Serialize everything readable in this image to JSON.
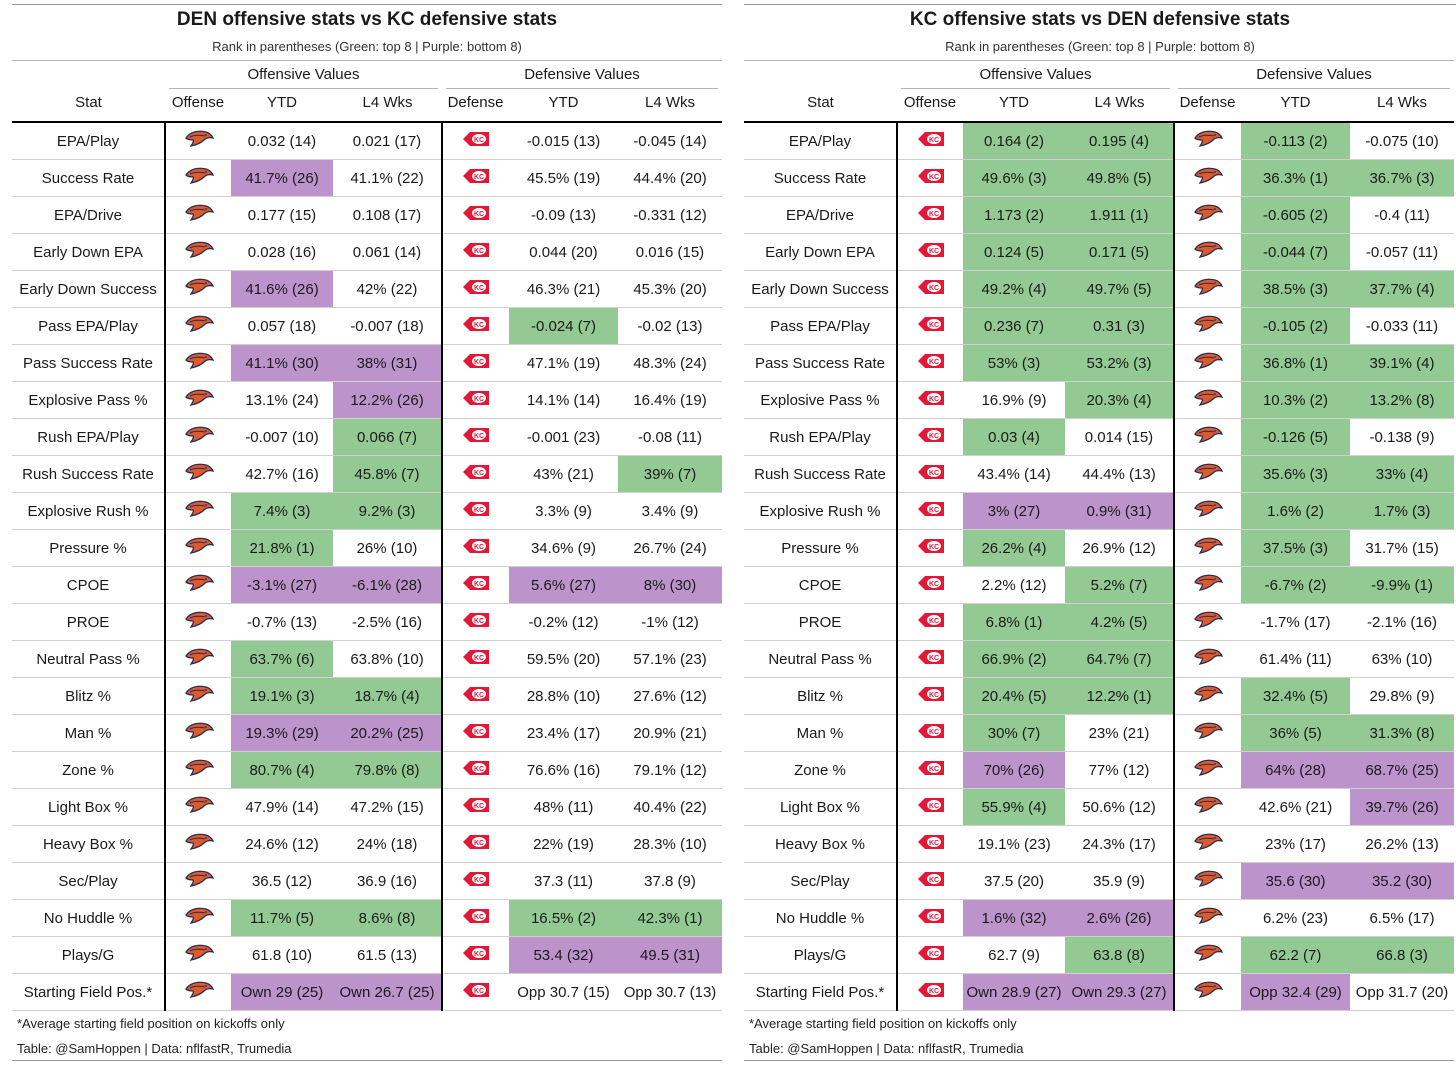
{
  "panels": [
    {
      "title": "DEN offensive stats vs KC defensive stats",
      "subtitle": "Rank in parentheses (Green: top 8 | Purple: bottom 8)",
      "group_headers": [
        "Offensive Values",
        "Defensive Values"
      ],
      "column_headers": [
        "Stat",
        "Offense",
        "YTD",
        "L4 Wks",
        "Defense",
        "YTD",
        "L4 Wks"
      ],
      "offense_logo": "broncos-logo",
      "defense_logo": "chiefs-logo",
      "rows": [
        {
          "stat": "EPA/Play",
          "off_ytd": "0.032 (14)",
          "off_l4": "0.021 (17)",
          "def_ytd": "-0.015 (13)",
          "def_l4": "-0.045 (14)",
          "h": [
            "",
            "",
            "",
            ""
          ]
        },
        {
          "stat": "Success Rate",
          "off_ytd": "41.7% (26)",
          "off_l4": "41.1% (22)",
          "def_ytd": "45.5% (19)",
          "def_l4": "44.4% (20)",
          "h": [
            "p",
            "",
            "",
            ""
          ]
        },
        {
          "stat": "EPA/Drive",
          "off_ytd": "0.177 (15)",
          "off_l4": "0.108 (17)",
          "def_ytd": "-0.09 (13)",
          "def_l4": "-0.331 (12)",
          "h": [
            "",
            "",
            "",
            ""
          ]
        },
        {
          "stat": "Early Down EPA",
          "off_ytd": "0.028 (16)",
          "off_l4": "0.061 (14)",
          "def_ytd": "0.044 (20)",
          "def_l4": "0.016 (15)",
          "h": [
            "",
            "",
            "",
            ""
          ]
        },
        {
          "stat": "Early Down Success",
          "off_ytd": "41.6% (26)",
          "off_l4": "42% (22)",
          "def_ytd": "46.3% (21)",
          "def_l4": "45.3% (20)",
          "h": [
            "p",
            "",
            "",
            ""
          ]
        },
        {
          "stat": "Pass EPA/Play",
          "off_ytd": "0.057 (18)",
          "off_l4": "-0.007 (18)",
          "def_ytd": "-0.024 (7)",
          "def_l4": "-0.02 (13)",
          "h": [
            "",
            "",
            "g",
            ""
          ]
        },
        {
          "stat": "Pass Success Rate",
          "off_ytd": "41.1% (30)",
          "off_l4": "38% (31)",
          "def_ytd": "47.1% (19)",
          "def_l4": "48.3% (24)",
          "h": [
            "p",
            "p",
            "",
            ""
          ]
        },
        {
          "stat": "Explosive Pass %",
          "off_ytd": "13.1% (24)",
          "off_l4": "12.2% (26)",
          "def_ytd": "14.1% (14)",
          "def_l4": "16.4% (19)",
          "h": [
            "",
            "p",
            "",
            ""
          ]
        },
        {
          "stat": "Rush EPA/Play",
          "off_ytd": "-0.007 (10)",
          "off_l4": "0.066 (7)",
          "def_ytd": "-0.001 (23)",
          "def_l4": "-0.08 (11)",
          "h": [
            "",
            "g",
            "",
            ""
          ]
        },
        {
          "stat": "Rush Success Rate",
          "off_ytd": "42.7% (16)",
          "off_l4": "45.8% (7)",
          "def_ytd": "43% (21)",
          "def_l4": "39% (7)",
          "h": [
            "",
            "g",
            "",
            "g"
          ]
        },
        {
          "stat": "Explosive Rush %",
          "off_ytd": "7.4% (3)",
          "off_l4": "9.2% (3)",
          "def_ytd": "3.3% (9)",
          "def_l4": "3.4% (9)",
          "h": [
            "g",
            "g",
            "",
            ""
          ]
        },
        {
          "stat": "Pressure %",
          "off_ytd": "21.8% (1)",
          "off_l4": "26% (10)",
          "def_ytd": "34.6% (9)",
          "def_l4": "26.7% (24)",
          "h": [
            "g",
            "",
            "",
            ""
          ]
        },
        {
          "stat": "CPOE",
          "off_ytd": "-3.1% (27)",
          "off_l4": "-6.1% (28)",
          "def_ytd": "5.6% (27)",
          "def_l4": "8% (30)",
          "h": [
            "p",
            "p",
            "p",
            "p"
          ]
        },
        {
          "stat": "PROE",
          "off_ytd": "-0.7% (13)",
          "off_l4": "-2.5% (16)",
          "def_ytd": "-0.2% (12)",
          "def_l4": "-1% (12)",
          "h": [
            "",
            "",
            "",
            ""
          ]
        },
        {
          "stat": "Neutral Pass %",
          "off_ytd": "63.7% (6)",
          "off_l4": "63.8% (10)",
          "def_ytd": "59.5% (20)",
          "def_l4": "57.1% (23)",
          "h": [
            "g",
            "",
            "",
            ""
          ]
        },
        {
          "stat": "Blitz %",
          "off_ytd": "19.1% (3)",
          "off_l4": "18.7% (4)",
          "def_ytd": "28.8% (10)",
          "def_l4": "27.6% (12)",
          "h": [
            "g",
            "g",
            "",
            ""
          ]
        },
        {
          "stat": "Man %",
          "off_ytd": "19.3% (29)",
          "off_l4": "20.2% (25)",
          "def_ytd": "23.4% (17)",
          "def_l4": "20.9% (21)",
          "h": [
            "p",
            "p",
            "",
            ""
          ]
        },
        {
          "stat": "Zone %",
          "off_ytd": "80.7% (4)",
          "off_l4": "79.8% (8)",
          "def_ytd": "76.6% (16)",
          "def_l4": "79.1% (12)",
          "h": [
            "g",
            "g",
            "",
            ""
          ]
        },
        {
          "stat": "Light Box %",
          "off_ytd": "47.9% (14)",
          "off_l4": "47.2% (15)",
          "def_ytd": "48% (11)",
          "def_l4": "40.4% (22)",
          "h": [
            "",
            "",
            "",
            ""
          ]
        },
        {
          "stat": "Heavy Box %",
          "off_ytd": "24.6% (12)",
          "off_l4": "24% (18)",
          "def_ytd": "22% (19)",
          "def_l4": "28.3% (10)",
          "h": [
            "",
            "",
            "",
            ""
          ]
        },
        {
          "stat": "Sec/Play",
          "off_ytd": "36.5 (12)",
          "off_l4": "36.9 (16)",
          "def_ytd": "37.3 (11)",
          "def_l4": "37.8 (9)",
          "h": [
            "",
            "",
            "",
            ""
          ]
        },
        {
          "stat": "No Huddle %",
          "off_ytd": "11.7% (5)",
          "off_l4": "8.6% (8)",
          "def_ytd": "16.5% (2)",
          "def_l4": "42.3% (1)",
          "h": [
            "g",
            "g",
            "g",
            "g"
          ]
        },
        {
          "stat": "Plays/G",
          "off_ytd": "61.8 (10)",
          "off_l4": "61.5 (13)",
          "def_ytd": "53.4 (32)",
          "def_l4": "49.5 (31)",
          "h": [
            "",
            "",
            "p",
            "p"
          ]
        },
        {
          "stat": "Starting Field Pos.*",
          "off_ytd": "Own 29 (25)",
          "off_l4": "Own 26.7 (25)",
          "def_ytd": "Opp 30.7 (15)",
          "def_l4": "Opp 30.7 (13)",
          "h": [
            "p",
            "p",
            "",
            ""
          ]
        }
      ],
      "footnote": "*Average starting field position on kickoffs only",
      "credit": "Table: @SamHoppen | Data: nflfastR, Trumedia"
    },
    {
      "title": "KC offensive stats vs DEN defensive stats",
      "subtitle": "Rank in parentheses (Green: top 8 | Purple: bottom 8)",
      "group_headers": [
        "Offensive Values",
        "Defensive Values"
      ],
      "column_headers": [
        "Stat",
        "Offense",
        "YTD",
        "L4 Wks",
        "Defense",
        "YTD",
        "L4 Wks"
      ],
      "offense_logo": "chiefs-logo",
      "defense_logo": "broncos-logo",
      "rows": [
        {
          "stat": "EPA/Play",
          "off_ytd": "0.164 (2)",
          "off_l4": "0.195 (4)",
          "def_ytd": "-0.113 (2)",
          "def_l4": "-0.075 (10)",
          "h": [
            "g",
            "g",
            "g",
            ""
          ]
        },
        {
          "stat": "Success Rate",
          "off_ytd": "49.6% (3)",
          "off_l4": "49.8% (5)",
          "def_ytd": "36.3% (1)",
          "def_l4": "36.7% (3)",
          "h": [
            "g",
            "g",
            "g",
            "g"
          ]
        },
        {
          "stat": "EPA/Drive",
          "off_ytd": "1.173 (2)",
          "off_l4": "1.911 (1)",
          "def_ytd": "-0.605 (2)",
          "def_l4": "-0.4 (11)",
          "h": [
            "g",
            "g",
            "g",
            ""
          ]
        },
        {
          "stat": "Early Down EPA",
          "off_ytd": "0.124 (5)",
          "off_l4": "0.171 (5)",
          "def_ytd": "-0.044 (7)",
          "def_l4": "-0.057 (11)",
          "h": [
            "g",
            "g",
            "g",
            ""
          ]
        },
        {
          "stat": "Early Down Success",
          "off_ytd": "49.2% (4)",
          "off_l4": "49.7% (5)",
          "def_ytd": "38.5% (3)",
          "def_l4": "37.7% (4)",
          "h": [
            "g",
            "g",
            "g",
            "g"
          ]
        },
        {
          "stat": "Pass EPA/Play",
          "off_ytd": "0.236 (7)",
          "off_l4": "0.31 (3)",
          "def_ytd": "-0.105 (2)",
          "def_l4": "-0.033 (11)",
          "h": [
            "g",
            "g",
            "g",
            ""
          ]
        },
        {
          "stat": "Pass Success Rate",
          "off_ytd": "53% (3)",
          "off_l4": "53.2% (3)",
          "def_ytd": "36.8% (1)",
          "def_l4": "39.1% (4)",
          "h": [
            "g",
            "g",
            "g",
            "g"
          ]
        },
        {
          "stat": "Explosive Pass %",
          "off_ytd": "16.9% (9)",
          "off_l4": "20.3% (4)",
          "def_ytd": "10.3% (2)",
          "def_l4": "13.2% (8)",
          "h": [
            "",
            "g",
            "g",
            "g"
          ]
        },
        {
          "stat": "Rush EPA/Play",
          "off_ytd": "0.03 (4)",
          "off_l4": "0.014 (15)",
          "def_ytd": "-0.126 (5)",
          "def_l4": "-0.138 (9)",
          "h": [
            "g",
            "",
            "g",
            ""
          ]
        },
        {
          "stat": "Rush Success Rate",
          "off_ytd": "43.4% (14)",
          "off_l4": "44.4% (13)",
          "def_ytd": "35.6% (3)",
          "def_l4": "33% (4)",
          "h": [
            "",
            "",
            "g",
            "g"
          ]
        },
        {
          "stat": "Explosive Rush %",
          "off_ytd": "3% (27)",
          "off_l4": "0.9% (31)",
          "def_ytd": "1.6% (2)",
          "def_l4": "1.7% (3)",
          "h": [
            "p",
            "p",
            "g",
            "g"
          ]
        },
        {
          "stat": "Pressure %",
          "off_ytd": "26.2% (4)",
          "off_l4": "26.9% (12)",
          "def_ytd": "37.5% (3)",
          "def_l4": "31.7% (15)",
          "h": [
            "g",
            "",
            "g",
            ""
          ]
        },
        {
          "stat": "CPOE",
          "off_ytd": "2.2% (12)",
          "off_l4": "5.2% (7)",
          "def_ytd": "-6.7% (2)",
          "def_l4": "-9.9% (1)",
          "h": [
            "",
            "g",
            "g",
            "g"
          ]
        },
        {
          "stat": "PROE",
          "off_ytd": "6.8% (1)",
          "off_l4": "4.2% (5)",
          "def_ytd": "-1.7% (17)",
          "def_l4": "-2.1% (16)",
          "h": [
            "g",
            "g",
            "",
            ""
          ]
        },
        {
          "stat": "Neutral Pass %",
          "off_ytd": "66.9% (2)",
          "off_l4": "64.7% (7)",
          "def_ytd": "61.4% (11)",
          "def_l4": "63% (10)",
          "h": [
            "g",
            "g",
            "",
            ""
          ]
        },
        {
          "stat": "Blitz %",
          "off_ytd": "20.4% (5)",
          "off_l4": "12.2% (1)",
          "def_ytd": "32.4% (5)",
          "def_l4": "29.8% (9)",
          "h": [
            "g",
            "g",
            "g",
            ""
          ]
        },
        {
          "stat": "Man %",
          "off_ytd": "30% (7)",
          "off_l4": "23% (21)",
          "def_ytd": "36% (5)",
          "def_l4": "31.3% (8)",
          "h": [
            "g",
            "",
            "g",
            "g"
          ]
        },
        {
          "stat": "Zone %",
          "off_ytd": "70% (26)",
          "off_l4": "77% (12)",
          "def_ytd": "64% (28)",
          "def_l4": "68.7% (25)",
          "h": [
            "p",
            "",
            "p",
            "p"
          ]
        },
        {
          "stat": "Light Box %",
          "off_ytd": "55.9% (4)",
          "off_l4": "50.6% (12)",
          "def_ytd": "42.6% (21)",
          "def_l4": "39.7% (26)",
          "h": [
            "g",
            "",
            "",
            "p"
          ]
        },
        {
          "stat": "Heavy Box %",
          "off_ytd": "19.1% (23)",
          "off_l4": "24.3% (17)",
          "def_ytd": "23% (17)",
          "def_l4": "26.2% (13)",
          "h": [
            "",
            "",
            "",
            ""
          ]
        },
        {
          "stat": "Sec/Play",
          "off_ytd": "37.5 (20)",
          "off_l4": "35.9 (9)",
          "def_ytd": "35.6 (30)",
          "def_l4": "35.2 (30)",
          "h": [
            "",
            "",
            "p",
            "p"
          ]
        },
        {
          "stat": "No Huddle %",
          "off_ytd": "1.6% (32)",
          "off_l4": "2.6% (26)",
          "def_ytd": "6.2% (23)",
          "def_l4": "6.5% (17)",
          "h": [
            "p",
            "p",
            "",
            ""
          ]
        },
        {
          "stat": "Plays/G",
          "off_ytd": "62.7 (9)",
          "off_l4": "63.8 (8)",
          "def_ytd": "62.2 (7)",
          "def_l4": "66.8 (3)",
          "h": [
            "",
            "g",
            "g",
            "g"
          ]
        },
        {
          "stat": "Starting Field Pos.*",
          "off_ytd": "Own 28.9 (27)",
          "off_l4": "Own 29.3 (27)",
          "def_ytd": "Opp 32.4 (29)",
          "def_l4": "Opp 31.7 (20)",
          "h": [
            "p",
            "p",
            "p",
            ""
          ]
        }
      ],
      "footnote": "*Average starting field position on kickoffs only",
      "credit": "Table: @SamHoppen | Data: nflfastR, Trumedia"
    }
  ],
  "colors": {
    "top8_green": "#93c993",
    "bottom8_purple": "#bd93cc",
    "broncos_orange": "#e0592a",
    "broncos_navy": "#1d2f5a",
    "chiefs_red": "#e31837"
  }
}
